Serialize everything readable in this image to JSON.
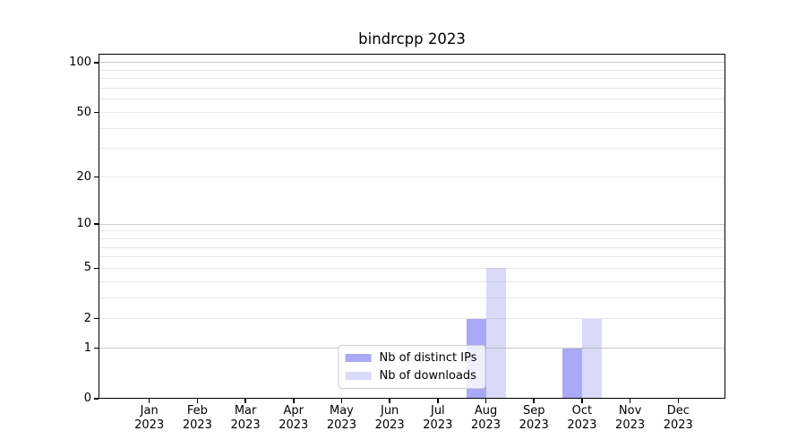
{
  "chart_data": {
    "type": "bar",
    "title": "bindrcpp 2023",
    "categories": [
      "Jan",
      "Feb",
      "Mar",
      "Apr",
      "May",
      "Jun",
      "Jul",
      "Aug",
      "Sep",
      "Oct",
      "Nov",
      "Dec"
    ],
    "category_sublabel": "2023",
    "series": [
      {
        "name": "Nb of distinct IPs",
        "color": "#a9a9f5",
        "values": [
          0,
          0,
          0,
          0,
          0,
          0,
          0,
          2,
          0,
          1,
          0,
          0
        ]
      },
      {
        "name": "Nb of downloads",
        "color": "#dadaf8",
        "values": [
          0,
          0,
          0,
          0,
          0,
          0,
          0,
          5,
          0,
          2,
          0,
          0
        ]
      }
    ],
    "y_scale": "log1p",
    "y_ticks": [
      0,
      1,
      2,
      5,
      10,
      20,
      50,
      100
    ],
    "ylim": [
      0,
      113
    ],
    "grid": {
      "major_lines": [
        1,
        10,
        100
      ],
      "minor_lines": [
        2,
        3,
        4,
        5,
        6,
        7,
        8,
        9,
        20,
        30,
        40,
        50,
        60,
        70,
        80,
        90
      ]
    },
    "legend_position": "lower center"
  }
}
